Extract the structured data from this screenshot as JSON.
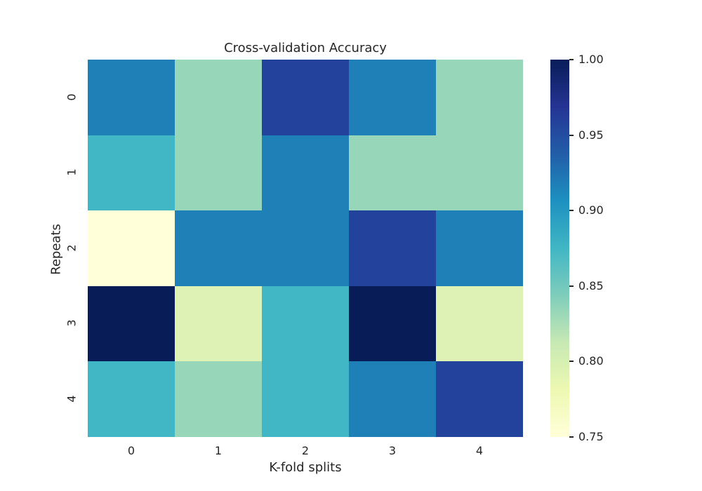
{
  "chart_data": {
    "type": "heatmap",
    "title": "Cross-validation Accuracy",
    "xlabel": "K-fold splits",
    "ylabel": "Repeats",
    "x_categories": [
      "0",
      "1",
      "2",
      "3",
      "4"
    ],
    "y_categories": [
      "0",
      "1",
      "2",
      "3",
      "4"
    ],
    "values": [
      [
        0.917,
        0.833,
        0.958,
        0.917,
        0.833
      ],
      [
        0.875,
        0.833,
        0.917,
        0.833,
        0.833
      ],
      [
        0.75,
        0.917,
        0.917,
        0.958,
        0.917
      ],
      [
        1.0,
        0.8,
        0.875,
        1.0,
        0.8
      ],
      [
        0.875,
        0.833,
        0.875,
        0.917,
        0.958
      ]
    ],
    "cell_colors": [
      [
        "#1f80b8",
        "#97d6b9",
        "#23429b",
        "#1f80b8",
        "#97d6b9"
      ],
      [
        "#41b6c4",
        "#97d6b9",
        "#1f80b8",
        "#97d6b9",
        "#97d6b9"
      ],
      [
        "#ffffd9",
        "#1f80b8",
        "#1f80b8",
        "#23429b",
        "#1f80b8"
      ],
      [
        "#081d58",
        "#dff2b5",
        "#41b6c4",
        "#081d58",
        "#dff2b5"
      ],
      [
        "#41b6c4",
        "#97d6b9",
        "#41b6c4",
        "#1f80b8",
        "#23429b"
      ]
    ],
    "colormap": "YlGnBu",
    "colorbar": {
      "min": 0.75,
      "max": 1.0,
      "ticks": [
        "0.75",
        "0.80",
        "0.85",
        "0.90",
        "0.95",
        "1.00"
      ]
    }
  }
}
